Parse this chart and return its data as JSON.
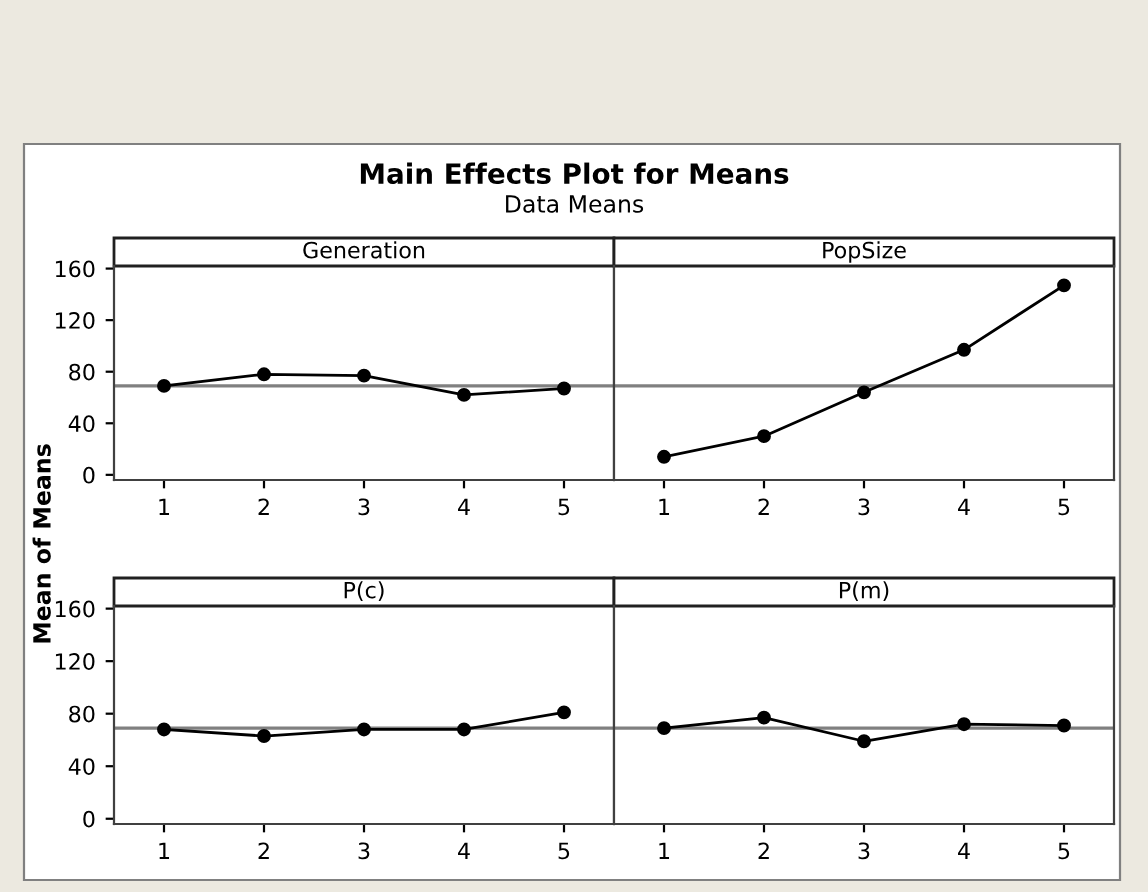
{
  "chart_data": [
    {
      "type": "other",
      "title": "Main Effects Plot for Means",
      "subtitle": "Data Means"
    },
    {
      "type": "line",
      "title": "Generation",
      "ylabel": "Mean of Means",
      "categories": [
        "1",
        "2",
        "3",
        "4",
        "5"
      ],
      "series": [
        {
          "color": "#000000",
          "values": [
            69,
            78,
            77,
            62,
            67
          ]
        }
      ],
      "ylim": [
        -4,
        162
      ],
      "yticks": [
        0,
        40,
        80,
        120,
        160
      ],
      "ref_lines": [
        {
          "axis": "y",
          "value": 69,
          "color": "#808080"
        }
      ],
      "marker": "circle",
      "line_style": "solid",
      "grid": false
    },
    {
      "type": "line",
      "title": "PopSize",
      "categories": [
        "1",
        "2",
        "3",
        "4",
        "5"
      ],
      "series": [
        {
          "color": "#000000",
          "values": [
            14,
            30,
            64,
            97,
            147
          ]
        }
      ],
      "ylim": [
        -4,
        162
      ],
      "yticks": [
        0,
        40,
        80,
        120,
        160
      ],
      "tick_labels": "x",
      "ref_lines": [
        {
          "axis": "y",
          "value": 69,
          "color": "#808080"
        }
      ],
      "marker": "circle",
      "line_style": "solid",
      "grid": false
    },
    {
      "type": "line",
      "title": "P(c)",
      "categories": [
        "1",
        "2",
        "3",
        "4",
        "5"
      ],
      "series": [
        {
          "color": "#000000",
          "values": [
            68,
            63,
            68,
            68,
            81
          ]
        }
      ],
      "ylim": [
        -4,
        162
      ],
      "yticks": [
        0,
        40,
        80,
        120,
        160
      ],
      "ref_lines": [
        {
          "axis": "y",
          "value": 69,
          "color": "#808080"
        }
      ],
      "marker": "circle",
      "line_style": "solid",
      "grid": false
    },
    {
      "type": "line",
      "title": "P(m)",
      "categories": [
        "1",
        "2",
        "3",
        "4",
        "5"
      ],
      "series": [
        {
          "color": "#000000",
          "values": [
            69,
            77,
            59,
            72,
            71
          ]
        }
      ],
      "ylim": [
        -4,
        162
      ],
      "yticks": [
        0,
        40,
        80,
        120,
        160
      ],
      "tick_labels": "x",
      "ref_lines": [
        {
          "axis": "y",
          "value": 69,
          "color": "#808080"
        }
      ],
      "marker": "circle",
      "line_style": "solid",
      "grid": false
    }
  ]
}
